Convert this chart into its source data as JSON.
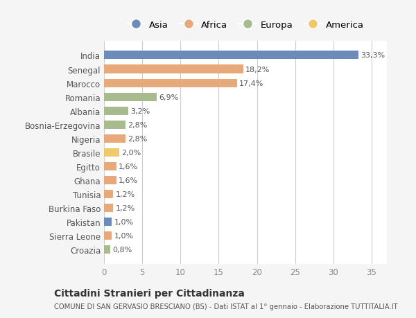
{
  "countries": [
    "India",
    "Senegal",
    "Marocco",
    "Romania",
    "Albania",
    "Bosnia-Erzegovina",
    "Nigeria",
    "Brasile",
    "Egitto",
    "Ghana",
    "Tunisia",
    "Burkina Faso",
    "Pakistan",
    "Sierra Leone",
    "Croazia"
  ],
  "values": [
    33.3,
    18.2,
    17.4,
    6.9,
    3.2,
    2.8,
    2.8,
    2.0,
    1.6,
    1.6,
    1.2,
    1.2,
    1.0,
    1.0,
    0.8
  ],
  "labels": [
    "33,3%",
    "18,2%",
    "17,4%",
    "6,9%",
    "3,2%",
    "2,8%",
    "2,8%",
    "2,0%",
    "1,6%",
    "1,6%",
    "1,2%",
    "1,2%",
    "1,0%",
    "1,0%",
    "0,8%"
  ],
  "continents": [
    "Asia",
    "Africa",
    "Africa",
    "Europa",
    "Europa",
    "Europa",
    "Africa",
    "America",
    "Africa",
    "Africa",
    "Africa",
    "Africa",
    "Asia",
    "Africa",
    "Europa"
  ],
  "continent_colors": {
    "Asia": "#6b8cba",
    "Africa": "#e8a97a",
    "Europa": "#a8bb8f",
    "America": "#f0c96a"
  },
  "legend_order": [
    "Asia",
    "Africa",
    "Europa",
    "America"
  ],
  "title": "Cittadini Stranieri per Cittadinanza",
  "subtitle": "COMUNE DI SAN GERVASIO BRESCIANO (BS) - Dati ISTAT al 1° gennaio - Elaborazione TUTTITALIA.IT",
  "xlim": [
    0,
    37
  ],
  "xticks": [
    0,
    5,
    10,
    15,
    20,
    25,
    30,
    35
  ],
  "background_color": "#f5f5f5",
  "bar_background": "#ffffff",
  "grid_color": "#cccccc"
}
